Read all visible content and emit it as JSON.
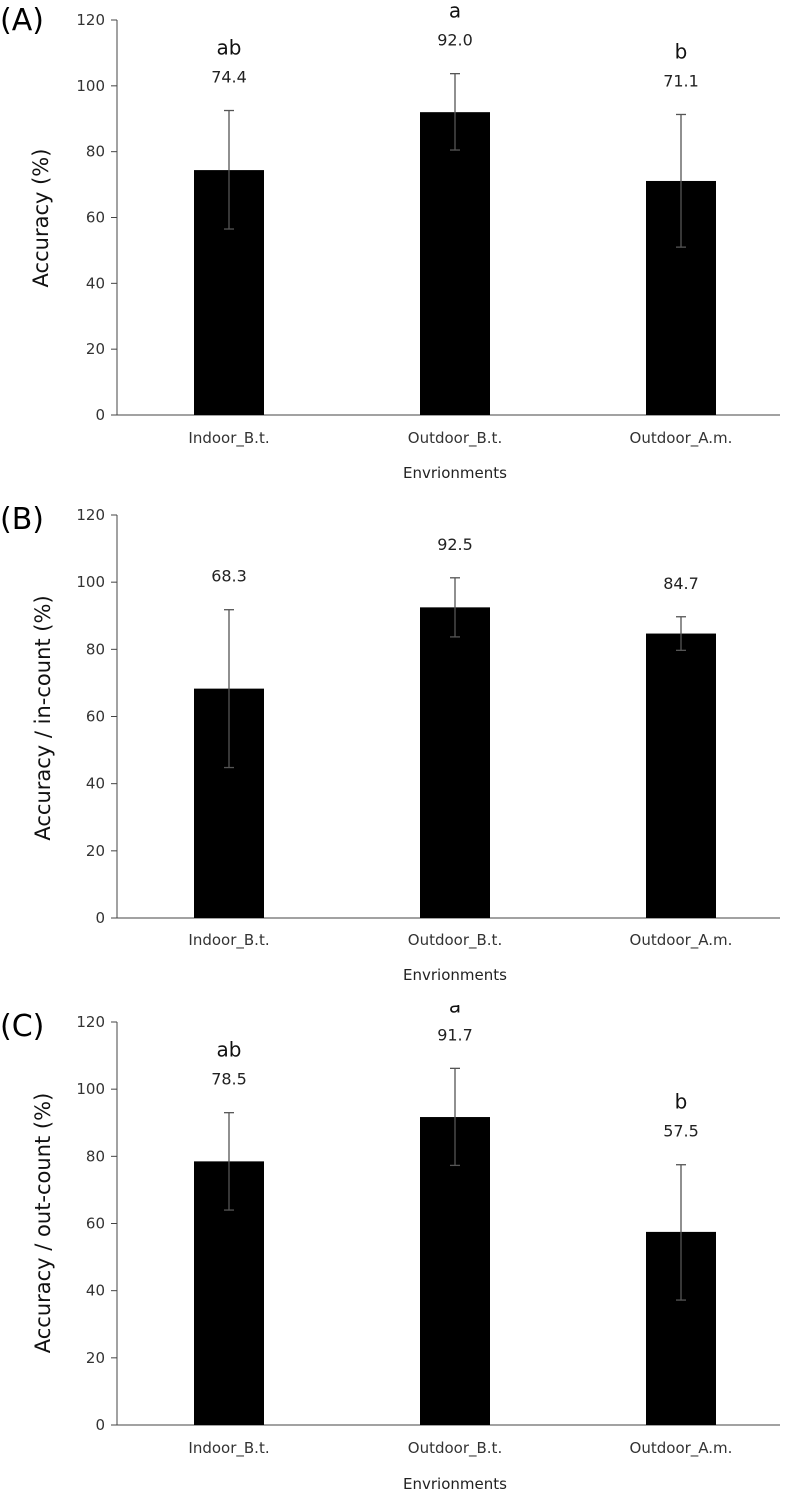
{
  "chart_data": [
    {
      "panel_label": "(A)",
      "type": "bar",
      "categories": [
        "Indoor_B.t.",
        "Outdoor_B.t.",
        "Outdoor_A.m."
      ],
      "values": [
        74.4,
        92.0,
        71.1
      ],
      "value_labels": [
        "74.4",
        "92.0",
        "71.1"
      ],
      "error_low": [
        56.5,
        80.5,
        51.0
      ],
      "error_high": [
        92.5,
        103.7,
        91.3
      ],
      "significance": [
        "ab",
        "a",
        "b"
      ],
      "xlabel": "Envrionments",
      "ylabel": "Accuracy  (%)",
      "ylim": [
        0,
        120
      ],
      "yticks": [
        "0",
        "20",
        "40",
        "60",
        "80",
        "100",
        "120"
      ],
      "bar_color": "#000000"
    },
    {
      "panel_label": "(B)",
      "type": "bar",
      "categories": [
        "Indoor_B.t.",
        "Outdoor_B.t.",
        "Outdoor_A.m."
      ],
      "values": [
        68.3,
        92.5,
        84.7
      ],
      "value_labels": [
        "68.3",
        "92.5",
        "84.7"
      ],
      "error_low": [
        44.8,
        83.7,
        79.7
      ],
      "error_high": [
        91.8,
        101.3,
        89.7
      ],
      "significance": [
        "",
        "",
        ""
      ],
      "xlabel": "Envrionments",
      "ylabel": "Accuracy / in-count (%)",
      "ylim": [
        0,
        120
      ],
      "yticks": [
        "0",
        "20",
        "40",
        "60",
        "80",
        "100",
        "120"
      ],
      "bar_color": "#000000"
    },
    {
      "panel_label": "(C)",
      "type": "bar",
      "categories": [
        "Indoor_B.t.",
        "Outdoor_B.t.",
        "Outdoor_A.m."
      ],
      "values": [
        78.5,
        91.7,
        57.5
      ],
      "value_labels": [
        "78.5",
        "91.7",
        "57.5"
      ],
      "error_low": [
        64.0,
        77.3,
        37.2
      ],
      "error_high": [
        93.0,
        106.2,
        77.5
      ],
      "significance": [
        "ab",
        "a",
        "b"
      ],
      "xlabel": "Envrionments",
      "ylabel": "Accuracy / out-count (%)",
      "ylim": [
        0,
        120
      ],
      "yticks": [
        "0",
        "20",
        "40",
        "60",
        "80",
        "100",
        "120"
      ],
      "bar_color": "#000000"
    }
  ]
}
